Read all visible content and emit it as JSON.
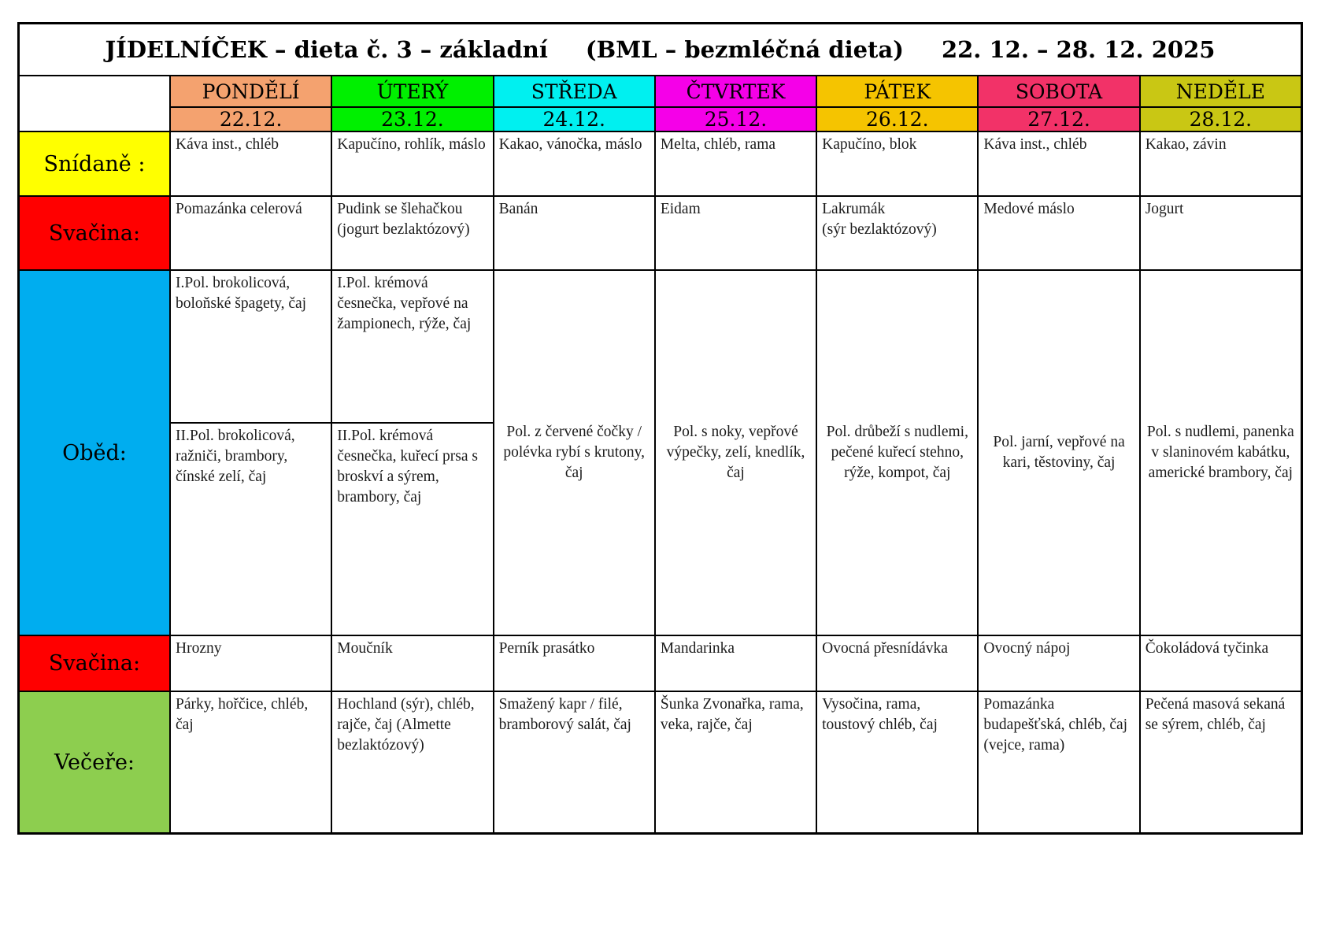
{
  "title": {
    "part1": "JÍDELNÍČEK – dieta č. 3 – základní",
    "part2": "(BML – bezmléčná dieta)",
    "part3": "22. 12. – 28. 12. 2025"
  },
  "days": [
    {
      "name": "PONDĚLÍ",
      "date": "22.12.",
      "color": "#F4A26F"
    },
    {
      "name": "ÚTERÝ",
      "date": "23.12.",
      "color": "#00F000"
    },
    {
      "name": "STŘEDA",
      "date": "24.12.",
      "color": "#00F0F0"
    },
    {
      "name": "ČTVRTEK",
      "date": "25.12.",
      "color": "#F500E8"
    },
    {
      "name": "PÁTEK",
      "date": "26.12.",
      "color": "#F5C400"
    },
    {
      "name": "SOBOTA",
      "date": "27.12.",
      "color": "#F23268"
    },
    {
      "name": "NEDĚLE",
      "date": "28.12.",
      "color": "#C9C714"
    }
  ],
  "rows": {
    "snidane": {
      "label": "Snídaně :",
      "color": "#FFFF00",
      "cells": [
        "Káva inst., chléb",
        "Kapučíno, rohlík, máslo",
        "Kakao, vánočka, máslo",
        "Melta, chléb, rama",
        "Kapučíno, blok",
        "Káva inst., chléb",
        "Kakao, závin"
      ]
    },
    "svacina1": {
      "label": "Svačina:",
      "color": "#FF0000",
      "cells": [
        "Pomazánka celerová",
        "Pudink se šlehačkou\n(jogurt bezlaktózový)",
        "Banán",
        "Eidam",
        "Lakrumák\n(sýr bezlaktózový)",
        "Medové máslo",
        "Jogurt"
      ]
    },
    "obed": {
      "label": "Oběd:",
      "color": "#00ADEF",
      "monday_soup1": "I.Pol. brokolicová, boloňské špagety, čaj",
      "monday_soup2": "II.Pol. brokolicová, ražniči, brambory, čínské zelí, čaj",
      "tuesday_soup1": "I.Pol. krémová česnečka, vepřové na žampionech, rýže, čaj",
      "tuesday_soup2": "II.Pol. krémová česnečka, kuřecí prsa s broskví a sýrem, brambory, čaj",
      "wednesday": "Pol. z červené čočky / polévka rybí s krutony, čaj",
      "thursday": "Pol. s noky, vepřové výpečky, zelí, knedlík, čaj",
      "friday": "Pol. drůbeží s nudlemi, pečené kuřecí stehno, rýže, kompot, čaj",
      "saturday": "Pol. jarní, vepřové na kari, těstoviny, čaj",
      "sunday": "Pol. s nudlemi, panenka v slaninovém kabátku, americké brambory, čaj"
    },
    "svacina2": {
      "label": "Svačina:",
      "color": "#FF0000",
      "cells": [
        "Hrozny",
        "Moučník",
        "Perník prasátko",
        "Mandarinka",
        "Ovocná přesnídávka",
        "Ovocný nápoj",
        "Čokoládová tyčinka"
      ]
    },
    "vecere": {
      "label": "Večeře:",
      "color": "#8DCE4F",
      "cells": [
        "Párky, hořčice, chléb, čaj",
        "Hochland (sýr), chléb, rajče, čaj (Almette bezlaktózový)",
        "Smažený kapr / filé, bramborový salát, čaj",
        "Šunka Zvonařka, rama, veka, rajče, čaj",
        "Vysočina, rama, toustový chléb, čaj",
        "Pomazánka budapešťská, chléb, čaj (vejce, rama)",
        "Pečená masová sekaná se sýrem, chléb, čaj"
      ]
    }
  }
}
